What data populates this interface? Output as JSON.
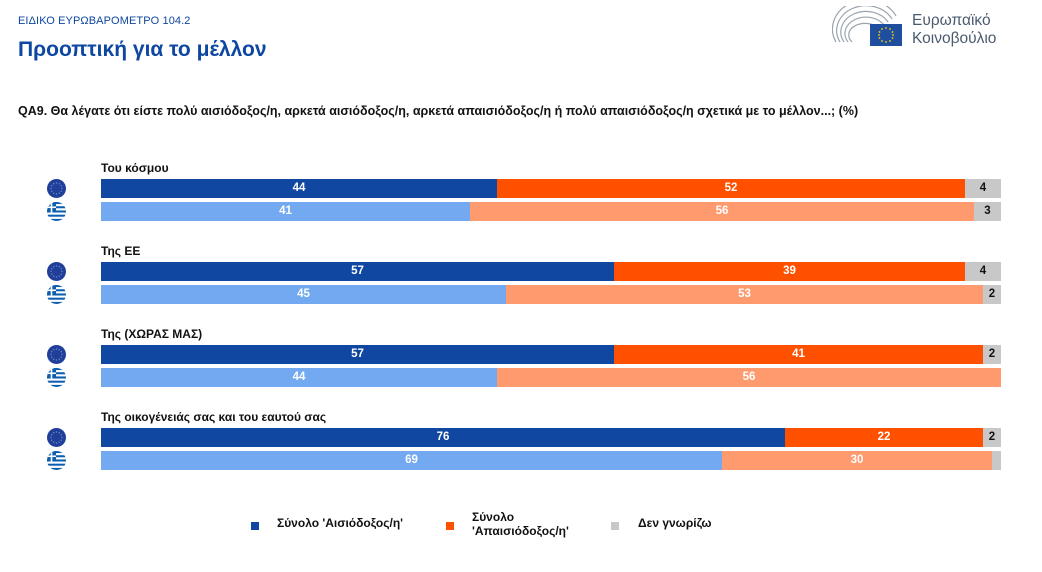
{
  "header": {
    "supertitle": "ΕΙΔΙΚΟ ΕΥΡΩΒΑΡΟΜΕΤΡΟ 104.2",
    "title": "Προοπτική για το μέλλον",
    "logo_line1": "Ευρωπαϊκό",
    "logo_line2": "Κοινοβούλιο",
    "logo_icon": "european-parliament-hemicycle-eu-flag-icon"
  },
  "colors": {
    "title_blue": "#0e47a1",
    "eu_optimistic": "#0f47a1",
    "eu_pessimistic": "#ff5000",
    "gr_optimistic": "#72a9f0",
    "gr_pessimistic": "#ff9a6e",
    "dont_know": "#c8c8c8"
  },
  "chart_data": {
    "type": "bar",
    "orientation": "horizontal-stacked-100",
    "title": "QA9. Θα λέγατε ότι είστε πολύ αισιόδοξος/η, αρκετά αισιόδοξος/η, αρκετά απαισιόδοξος/η ή πολύ απαισιόδοξος/η σχετικά με το μέλλον...; (%)",
    "xlabel": "",
    "ylabel": "",
    "xlim": [
      0,
      100
    ],
    "grid": false,
    "legend_position": "bottom",
    "series_names": [
      "Σύνολο 'Αισιόδοξος/η'",
      "Σύνολο 'Απαισιόδοξος/η'",
      "Δεν γνωρίζω"
    ],
    "groups": [
      {
        "label": "Του κόσμου",
        "rows": [
          {
            "entity": "EU",
            "flag": "eu-flag-icon",
            "values": [
              44,
              52,
              4
            ],
            "labels": [
              "44",
              "52",
              "4"
            ]
          },
          {
            "entity": "GR",
            "flag": "greece-flag-icon",
            "values": [
              41,
              56,
              3
            ],
            "labels": [
              "41",
              "56",
              "3"
            ]
          }
        ]
      },
      {
        "label": "Της ΕΕ",
        "rows": [
          {
            "entity": "EU",
            "flag": "eu-flag-icon",
            "values": [
              57,
              39,
              4
            ],
            "labels": [
              "57",
              "39",
              "4"
            ]
          },
          {
            "entity": "GR",
            "flag": "greece-flag-icon",
            "values": [
              45,
              53,
              2
            ],
            "labels": [
              "45",
              "53",
              "2"
            ]
          }
        ]
      },
      {
        "label": "Της (ΧΩΡΑΣ ΜΑΣ)",
        "rows": [
          {
            "entity": "EU",
            "flag": "eu-flag-icon",
            "values": [
              57,
              41,
              2
            ],
            "labels": [
              "57",
              "41",
              "2"
            ]
          },
          {
            "entity": "GR",
            "flag": "greece-flag-icon",
            "values": [
              44,
              56,
              0
            ],
            "labels": [
              "44",
              "56",
              ""
            ]
          }
        ]
      },
      {
        "label": "Της οικογένειάς σας και του εαυτού σας",
        "rows": [
          {
            "entity": "EU",
            "flag": "eu-flag-icon",
            "values": [
              76,
              22,
              2
            ],
            "labels": [
              "76",
              "22",
              "2"
            ]
          },
          {
            "entity": "GR",
            "flag": "greece-flag-icon",
            "values": [
              69,
              30,
              1
            ],
            "labels": [
              "69",
              "30",
              ""
            ]
          }
        ]
      }
    ]
  },
  "legend": [
    {
      "label": "Σύνολο 'Αισιόδοξος/η'",
      "color": "#0f47a1"
    },
    {
      "label_line1": "Σύνολο",
      "label_line2": "'Απαισιόδοξος/η'",
      "color": "#ff5000"
    },
    {
      "label": "Δεν γνωρίζω",
      "color": "#c8c8c8"
    }
  ]
}
